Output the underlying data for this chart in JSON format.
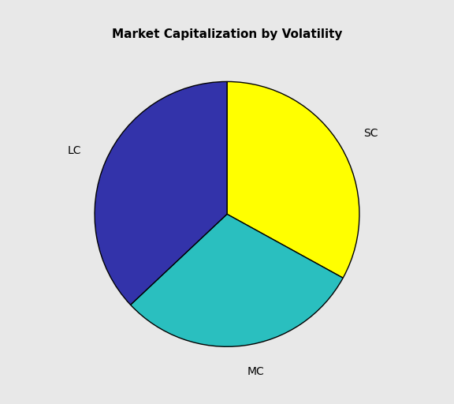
{
  "title": "Market Capitalization by Volatility",
  "slices": [
    {
      "label": "SC",
      "value": 33,
      "color": "#FFFF00"
    },
    {
      "label": "MC",
      "value": 30,
      "color": "#2ABFBF"
    },
    {
      "label": "LC",
      "value": 37,
      "color": "#3333AA"
    }
  ],
  "startangle": 90,
  "counterclock": false,
  "plot_bg_color": "#E8E8E8",
  "title_fontsize": 11,
  "label_fontsize": 10,
  "wedge_edgecolor": "#000000",
  "wedge_linewidth": 1.0,
  "labeldistance": 1.2
}
